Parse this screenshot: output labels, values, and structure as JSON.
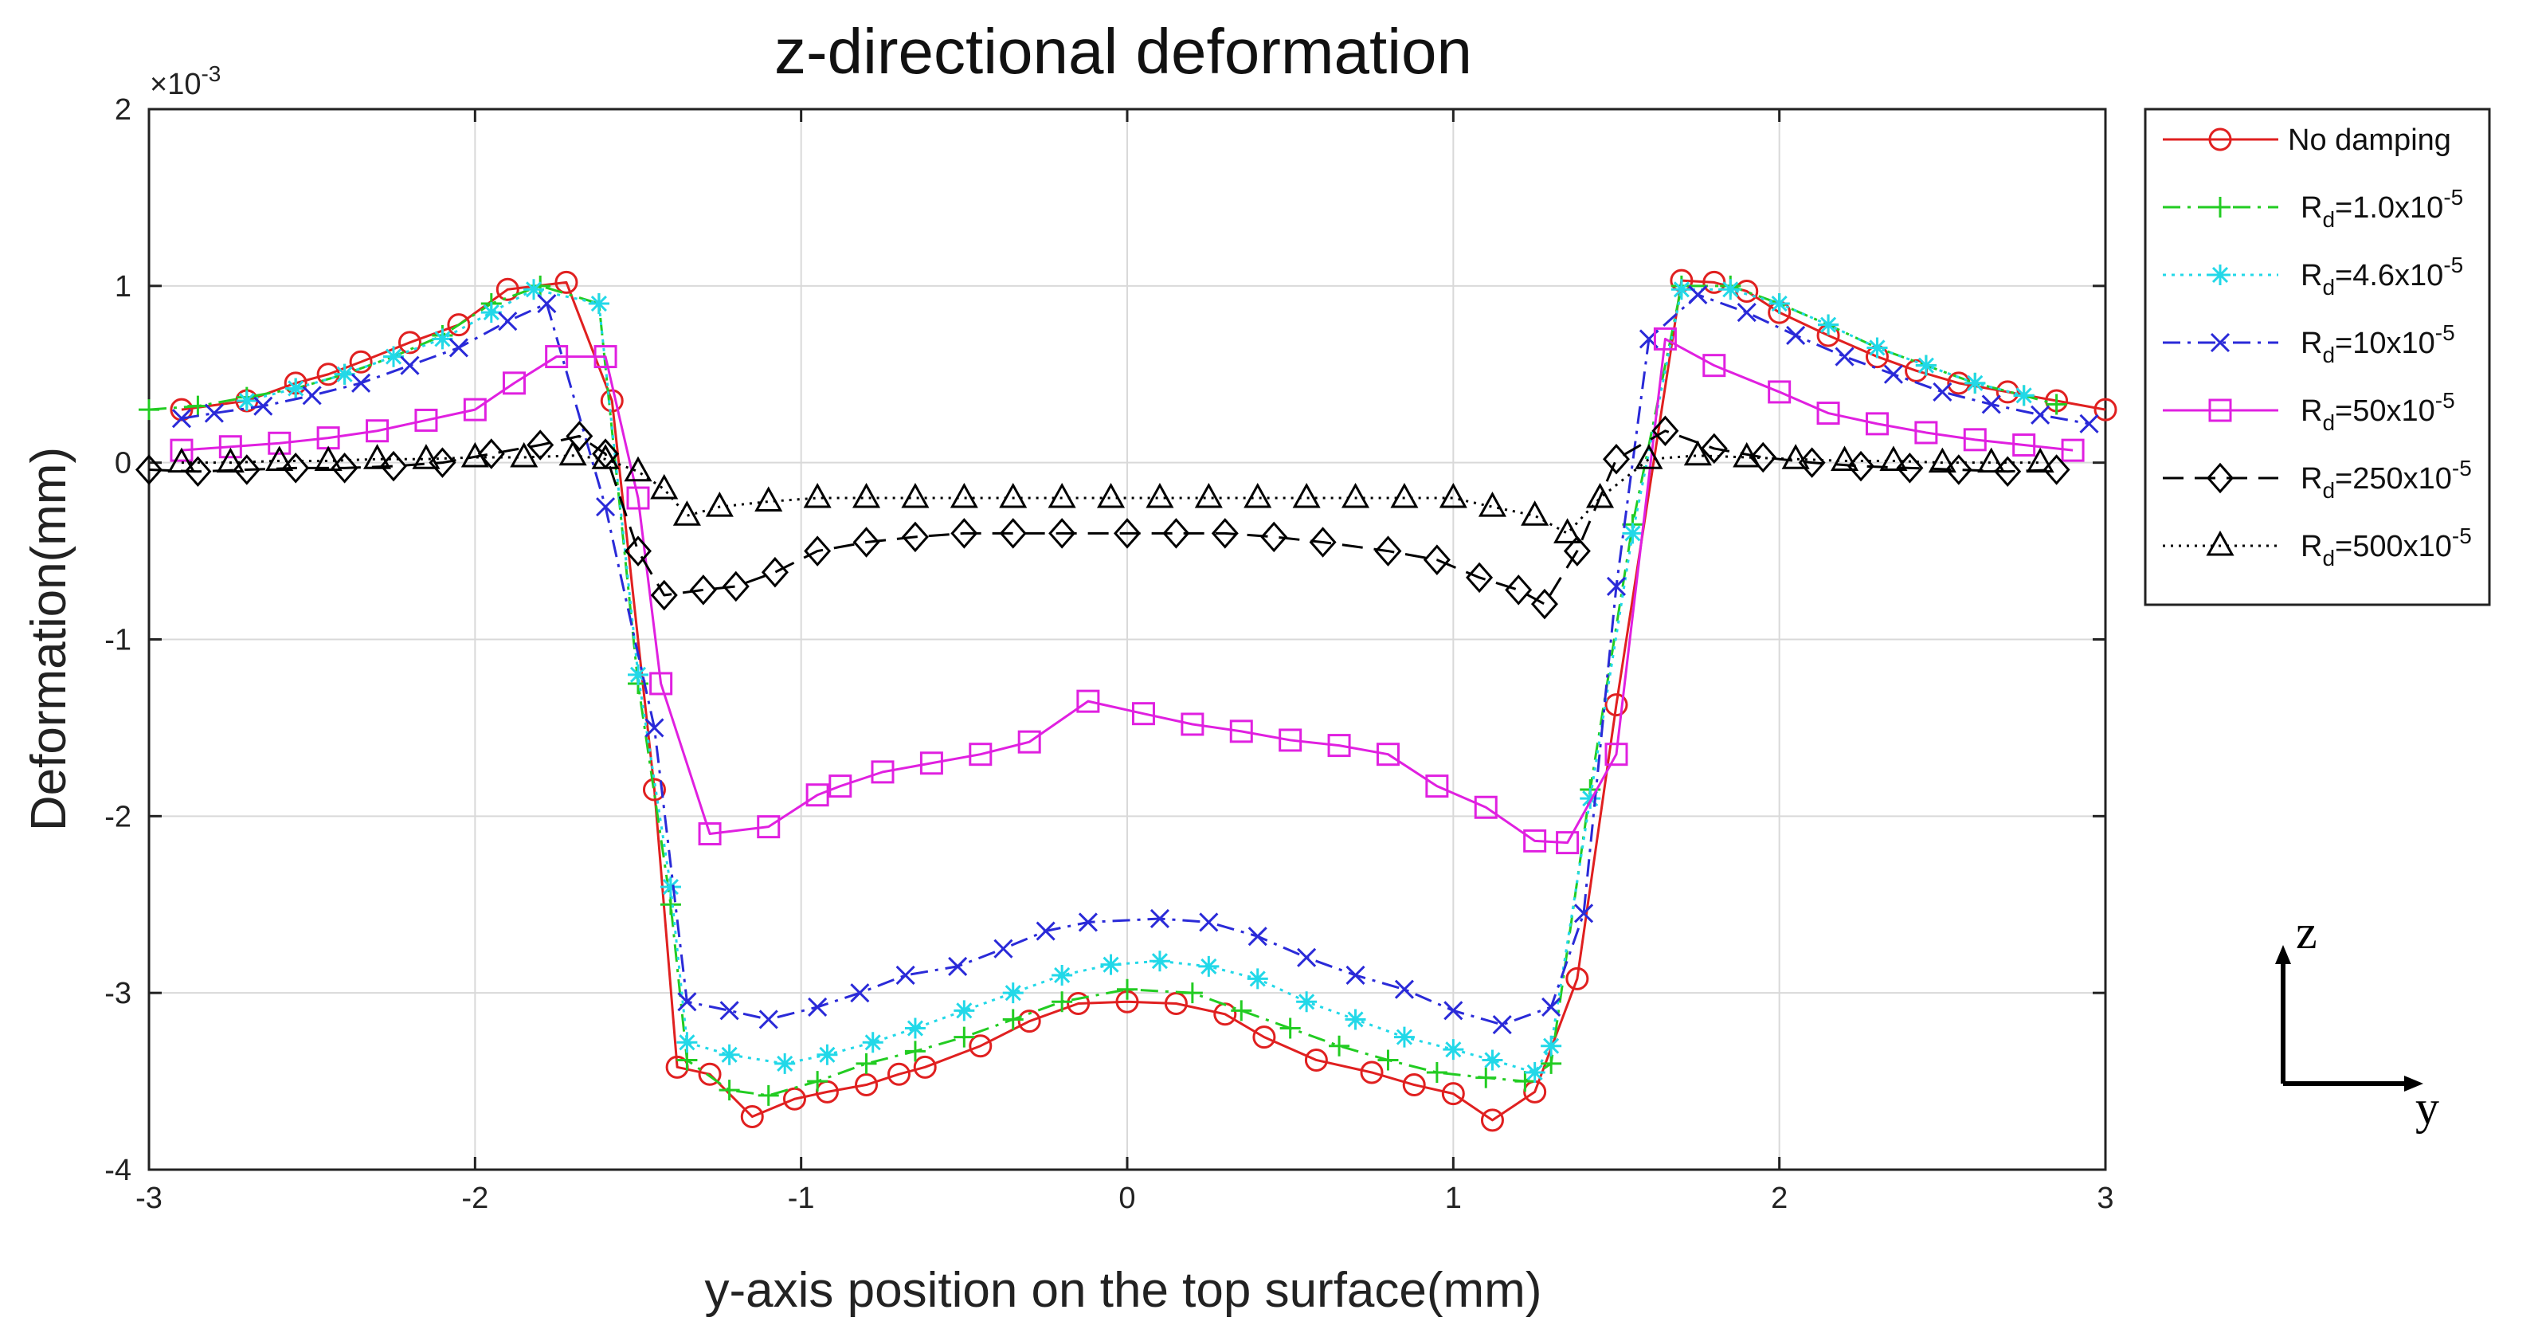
{
  "chart_data": {
    "type": "line",
    "title": "z-directional deformation",
    "xlabel": "y-axis position on the top surface(mm)",
    "ylabel": "Deformation(mm)",
    "y_exponent_label": "×10",
    "y_exponent_power": "-3",
    "xlim": [
      -3,
      3
    ],
    "ylim": [
      -4,
      2
    ],
    "xticks": [
      -3,
      -2,
      -1,
      0,
      1,
      2,
      3
    ],
    "yticks": [
      -4,
      -3,
      -2,
      -1,
      0,
      1,
      2
    ],
    "xtick_labels": [
      "-3",
      "-2",
      "-1",
      "0",
      "1",
      "2",
      "3"
    ],
    "ytick_labels": [
      "-4",
      "-3",
      "-2",
      "-1",
      "0",
      "1",
      "2"
    ],
    "grid": true,
    "legend_position": "outside-right-top",
    "series": [
      {
        "name": "No damping",
        "label_main": "No damping",
        "label_sub": "",
        "label_sup": "",
        "label_tail": "",
        "color": "#e02020",
        "dash": "",
        "marker": "circle",
        "x": [
          -2.9,
          -2.7,
          -2.55,
          -2.45,
          -2.35,
          -2.2,
          -2.05,
          -1.9,
          -1.72,
          -1.58,
          -1.45,
          -1.38,
          -1.28,
          -1.15,
          -1.02,
          -0.92,
          -0.8,
          -0.7,
          -0.62,
          -0.45,
          -0.3,
          -0.15,
          0,
          0.15,
          0.3,
          0.42,
          0.58,
          0.75,
          0.88,
          1.0,
          1.12,
          1.25,
          1.38,
          1.5,
          1.7,
          1.8,
          1.9,
          2.0,
          2.15,
          2.3,
          2.42,
          2.55,
          2.7,
          2.85,
          3.0
        ],
        "y": [
          0.3,
          0.35,
          0.45,
          0.5,
          0.57,
          0.68,
          0.78,
          0.98,
          1.02,
          0.35,
          -1.85,
          -3.42,
          -3.46,
          -3.7,
          -3.6,
          -3.56,
          -3.52,
          -3.46,
          -3.42,
          -3.3,
          -3.16,
          -3.06,
          -3.05,
          -3.06,
          -3.12,
          -3.25,
          -3.38,
          -3.45,
          -3.52,
          -3.57,
          -3.72,
          -3.56,
          -2.92,
          -1.37,
          1.03,
          1.02,
          0.97,
          0.85,
          0.72,
          0.6,
          0.52,
          0.45,
          0.4,
          0.35,
          0.3
        ]
      },
      {
        "name": "Rd=1.0x10-5",
        "label_main": "R",
        "label_sub": "d",
        "label_sup": "-5",
        "label_tail": "=1.0x10",
        "color": "#22cc22",
        "dash": "22 9 4 9",
        "marker": "plus",
        "x": [
          -3.0,
          -2.85,
          -2.7,
          -2.55,
          -2.4,
          -2.25,
          -2.1,
          -1.95,
          -1.8,
          -1.62,
          -1.5,
          -1.4,
          -1.35,
          -1.22,
          -1.1,
          -0.95,
          -0.8,
          -0.65,
          -0.5,
          -0.35,
          -0.2,
          0,
          0.2,
          0.35,
          0.5,
          0.65,
          0.8,
          0.95,
          1.1,
          1.22,
          1.3,
          1.42,
          1.55,
          1.7,
          1.85,
          2.0,
          2.15,
          2.3,
          2.45,
          2.6,
          2.75,
          2.85
        ],
        "y": [
          0.3,
          0.32,
          0.37,
          0.42,
          0.5,
          0.6,
          0.72,
          0.9,
          1.0,
          0.9,
          -1.25,
          -2.5,
          -3.38,
          -3.55,
          -3.58,
          -3.5,
          -3.4,
          -3.33,
          -3.25,
          -3.15,
          -3.05,
          -2.98,
          -3.0,
          -3.1,
          -3.2,
          -3.3,
          -3.38,
          -3.45,
          -3.48,
          -3.5,
          -3.4,
          -1.85,
          -0.35,
          1.0,
          1.0,
          0.9,
          0.78,
          0.65,
          0.55,
          0.45,
          0.38,
          0.33
        ]
      },
      {
        "name": "Rd=4.6x10-5",
        "label_main": "R",
        "label_sub": "d",
        "label_sup": "-5",
        "label_tail": "=4.6x10",
        "color": "#22d8e8",
        "dash": "4 7",
        "marker": "asterisk",
        "x": [
          -2.7,
          -2.55,
          -2.4,
          -2.25,
          -2.1,
          -1.95,
          -1.82,
          -1.62,
          -1.5,
          -1.4,
          -1.35,
          -1.22,
          -1.05,
          -0.92,
          -0.78,
          -0.65,
          -0.5,
          -0.35,
          -0.2,
          -0.05,
          0.1,
          0.25,
          0.4,
          0.55,
          0.7,
          0.85,
          1.0,
          1.12,
          1.25,
          1.3,
          1.42,
          1.55,
          1.7,
          1.85,
          2.0,
          2.15,
          2.3,
          2.45,
          2.6,
          2.75
        ],
        "y": [
          0.35,
          0.42,
          0.5,
          0.6,
          0.7,
          0.85,
          0.98,
          0.9,
          -1.2,
          -2.4,
          -3.28,
          -3.35,
          -3.4,
          -3.35,
          -3.28,
          -3.2,
          -3.1,
          -3.0,
          -2.9,
          -2.84,
          -2.82,
          -2.85,
          -2.92,
          -3.05,
          -3.15,
          -3.25,
          -3.32,
          -3.38,
          -3.45,
          -3.3,
          -1.9,
          -0.4,
          0.98,
          0.98,
          0.9,
          0.78,
          0.65,
          0.55,
          0.45,
          0.38
        ]
      },
      {
        "name": "Rd=10x10-5",
        "label_main": "R",
        "label_sub": "d",
        "label_sup": "-5",
        "label_tail": "=10x10",
        "color": "#2a2ad8",
        "dash": "22 9 4 9",
        "marker": "cross",
        "x": [
          -2.9,
          -2.8,
          -2.65,
          -2.5,
          -2.35,
          -2.2,
          -2.05,
          -1.9,
          -1.78,
          -1.6,
          -1.45,
          -1.35,
          -1.22,
          -1.1,
          -0.95,
          -0.82,
          -0.68,
          -0.52,
          -0.38,
          -0.25,
          -0.12,
          0.1,
          0.25,
          0.4,
          0.55,
          0.7,
          0.85,
          1.0,
          1.15,
          1.3,
          1.4,
          1.5,
          1.6,
          1.75,
          1.9,
          2.05,
          2.2,
          2.35,
          2.5,
          2.65,
          2.8,
          2.95
        ],
        "y": [
          0.25,
          0.28,
          0.32,
          0.38,
          0.45,
          0.55,
          0.65,
          0.8,
          0.9,
          -0.25,
          -1.5,
          -3.05,
          -3.1,
          -3.15,
          -3.08,
          -3.0,
          -2.9,
          -2.85,
          -2.75,
          -2.65,
          -2.6,
          -2.58,
          -2.6,
          -2.68,
          -2.8,
          -2.9,
          -2.98,
          -3.1,
          -3.18,
          -3.08,
          -2.55,
          -0.7,
          0.7,
          0.95,
          0.85,
          0.72,
          0.6,
          0.5,
          0.4,
          0.33,
          0.27,
          0.22
        ]
      },
      {
        "name": "Rd=50x10-5",
        "label_main": "R",
        "label_sub": "d",
        "label_sup": "-5",
        "label_tail": "=50x10",
        "color": "#e020e0",
        "dash": "",
        "marker": "square",
        "x": [
          -2.9,
          -2.75,
          -2.6,
          -2.45,
          -2.3,
          -2.15,
          -2.0,
          -1.88,
          -1.75,
          -1.6,
          -1.5,
          -1.43,
          -1.28,
          -1.1,
          -0.95,
          -0.88,
          -0.75,
          -0.6,
          -0.45,
          -0.3,
          -0.12,
          0.05,
          0.2,
          0.35,
          0.5,
          0.65,
          0.8,
          0.95,
          1.1,
          1.25,
          1.35,
          1.5,
          1.65,
          1.8,
          2.0,
          2.15,
          2.3,
          2.45,
          2.6,
          2.75,
          2.9
        ],
        "y": [
          0.07,
          0.09,
          0.11,
          0.14,
          0.18,
          0.24,
          0.3,
          0.45,
          0.6,
          0.6,
          -0.2,
          -1.25,
          -2.1,
          -2.06,
          -1.88,
          -1.83,
          -1.75,
          -1.7,
          -1.65,
          -1.58,
          -1.35,
          -1.42,
          -1.48,
          -1.52,
          -1.57,
          -1.6,
          -1.65,
          -1.83,
          -1.95,
          -2.14,
          -2.15,
          -1.65,
          0.7,
          0.55,
          0.4,
          0.28,
          0.22,
          0.17,
          0.13,
          0.1,
          0.07
        ]
      },
      {
        "name": "Rd=250x10-5",
        "label_main": "R",
        "label_sub": "d",
        "label_sup": "-5",
        "label_tail": "=250x10",
        "color": "#000000",
        "dash": "26 14",
        "marker": "diamond",
        "x": [
          -3.0,
          -2.85,
          -2.7,
          -2.55,
          -2.4,
          -2.25,
          -2.1,
          -1.95,
          -1.8,
          -1.68,
          -1.6,
          -1.5,
          -1.42,
          -1.3,
          -1.2,
          -1.08,
          -0.95,
          -0.8,
          -0.65,
          -0.5,
          -0.35,
          -0.2,
          0,
          0.15,
          0.3,
          0.45,
          0.6,
          0.8,
          0.95,
          1.08,
          1.2,
          1.28,
          1.38,
          1.5,
          1.65,
          1.8,
          1.95,
          2.1,
          2.25,
          2.4,
          2.55,
          2.7,
          2.85
        ],
        "y": [
          -0.04,
          -0.05,
          -0.04,
          -0.03,
          -0.03,
          -0.02,
          0.0,
          0.05,
          0.1,
          0.15,
          0.05,
          -0.5,
          -0.75,
          -0.72,
          -0.7,
          -0.62,
          -0.5,
          -0.45,
          -0.42,
          -0.4,
          -0.4,
          -0.4,
          -0.4,
          -0.4,
          -0.4,
          -0.42,
          -0.45,
          -0.5,
          -0.55,
          -0.65,
          -0.72,
          -0.8,
          -0.5,
          0.02,
          0.18,
          0.08,
          0.03,
          0.0,
          -0.02,
          -0.03,
          -0.04,
          -0.05,
          -0.04
        ]
      },
      {
        "name": "Rd=500x10-5",
        "label_main": "R",
        "label_sub": "d",
        "label_sup": "-5",
        "label_tail": "=500x10",
        "color": "#000000",
        "dash": "3 7",
        "marker": "triangle",
        "x": [
          -2.9,
          -2.75,
          -2.6,
          -2.45,
          -2.3,
          -2.15,
          -2.0,
          -1.85,
          -1.7,
          -1.6,
          -1.5,
          -1.42,
          -1.35,
          -1.25,
          -1.1,
          -0.95,
          -0.8,
          -0.65,
          -0.5,
          -0.35,
          -0.2,
          -0.05,
          0.1,
          0.25,
          0.4,
          0.55,
          0.7,
          0.85,
          1.0,
          1.12,
          1.25,
          1.35,
          1.45,
          1.6,
          1.75,
          1.9,
          2.05,
          2.2,
          2.35,
          2.5,
          2.65,
          2.8
        ],
        "y": [
          0.0,
          0.0,
          0.01,
          0.01,
          0.02,
          0.02,
          0.03,
          0.03,
          0.04,
          0.02,
          -0.05,
          -0.15,
          -0.3,
          -0.25,
          -0.22,
          -0.2,
          -0.2,
          -0.2,
          -0.2,
          -0.2,
          -0.2,
          -0.2,
          -0.2,
          -0.2,
          -0.2,
          -0.2,
          -0.2,
          -0.2,
          -0.2,
          -0.25,
          -0.3,
          -0.4,
          -0.2,
          0.02,
          0.04,
          0.03,
          0.02,
          0.01,
          0.01,
          0.0,
          0.0,
          0.0
        ]
      }
    ]
  },
  "axes_indicator": {
    "vertical_label": "z",
    "horizontal_label": "y"
  }
}
